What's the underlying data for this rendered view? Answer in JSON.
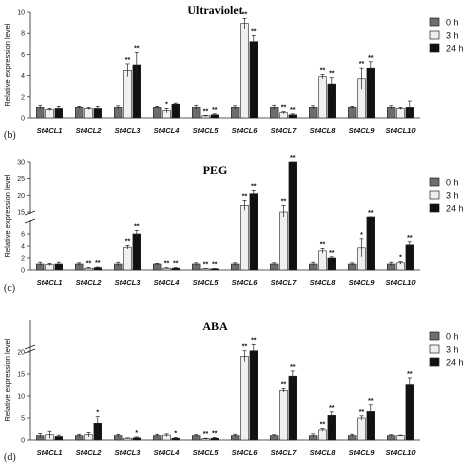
{
  "series_colors": [
    "#6d6d6d",
    "#f0f0f0",
    "#111111"
  ],
  "legend": [
    "0 h",
    "3 h",
    "24 h"
  ],
  "chart_data": [
    {
      "type": "bar",
      "title": "Ultraviolet",
      "panel_label": "(b)",
      "ylabel": "Relative expression level",
      "categories": [
        "St4CL1",
        "St4CL2",
        "St4CL3",
        "St4CL4",
        "St4CL5",
        "St4CL6",
        "St4CL7",
        "St4CL8",
        "St4CL9",
        "St4CL10"
      ],
      "ylim": [
        0,
        10
      ],
      "yticks": [
        "0",
        "2",
        "4",
        "6",
        "8",
        "10"
      ],
      "series": [
        {
          "name": "0 h",
          "values": [
            1.0,
            1.0,
            1.0,
            1.0,
            1.0,
            1.0,
            1.0,
            1.0,
            1.0,
            1.0
          ],
          "errors": [
            0.2,
            0.1,
            0.15,
            0.1,
            0.2,
            0.15,
            0.2,
            0.15,
            0.1,
            0.15
          ]
        },
        {
          "name": "3 h",
          "values": [
            0.8,
            0.9,
            4.5,
            0.7,
            0.2,
            8.9,
            0.5,
            3.9,
            3.7,
            0.9
          ],
          "errors": [
            0.1,
            0.1,
            0.6,
            0.2,
            0.05,
            0.5,
            0.1,
            0.2,
            1.0,
            0.1
          ]
        },
        {
          "name": "24 h",
          "values": [
            0.9,
            0.9,
            5.0,
            1.3,
            0.3,
            7.2,
            0.3,
            3.2,
            4.7,
            1.0
          ],
          "errors": [
            0.2,
            0.2,
            1.2,
            0.1,
            0.1,
            0.6,
            0.1,
            0.6,
            0.6,
            0.6
          ]
        }
      ],
      "sig": [
        [
          "",
          "",
          "",
          "",
          "",
          "",
          "",
          "",
          "",
          ""
        ],
        [
          "",
          "",
          "**",
          "*",
          "**",
          "**",
          "**",
          "**",
          "**",
          ""
        ],
        [
          "",
          "",
          "**",
          "",
          "**",
          "**",
          "**",
          "**",
          "**",
          ""
        ]
      ]
    },
    {
      "type": "bar",
      "title": "PEG",
      "panel_label": "(c)",
      "ylabel": "Relative expression level",
      "categories": [
        "St4CL1",
        "St4CL2",
        "St4CL3",
        "St4CL4",
        "St4CL5",
        "St4CL6",
        "St4CL7",
        "St4CL8",
        "St4CL9",
        "St4CL10"
      ],
      "axis_break": {
        "lower": [
          0,
          8
        ],
        "upper": [
          15,
          30
        ]
      },
      "yticks_lower": [
        "0",
        "2",
        "4",
        "6"
      ],
      "yticks_upper": [
        "15",
        "20",
        "25",
        "30"
      ],
      "series": [
        {
          "name": "0 h",
          "values": [
            1.0,
            1.0,
            1.0,
            1.0,
            1.0,
            1.0,
            1.0,
            1.0,
            1.0,
            1.0
          ],
          "errors": [
            0.3,
            0.2,
            0.3,
            0.1,
            0.2,
            0.2,
            0.2,
            0.3,
            0.2,
            0.3
          ]
        },
        {
          "name": "3 h",
          "values": [
            0.9,
            0.3,
            3.8,
            0.3,
            0.2,
            17.0,
            15.0,
            3.2,
            3.7,
            1.2
          ],
          "errors": [
            0.2,
            0.1,
            0.3,
            0.1,
            0.05,
            1.5,
            2.0,
            0.4,
            1.5,
            0.2
          ]
        },
        {
          "name": "24 h",
          "values": [
            1.0,
            0.4,
            6.0,
            0.3,
            0.2,
            20.5,
            33.0,
            2.0,
            13.0,
            4.2
          ],
          "errors": [
            0.3,
            0.1,
            0.6,
            0.1,
            0.05,
            1.0,
            2.0,
            0.2,
            1.5,
            0.5
          ]
        }
      ],
      "sig": [
        [
          "",
          "",
          "",
          "",
          "",
          "",
          "",
          "",
          "",
          ""
        ],
        [
          "",
          "**",
          "**",
          "**",
          "**",
          "**",
          "**",
          "**",
          "*",
          "*"
        ],
        [
          "",
          "**",
          "**",
          "**",
          "**",
          "**",
          "**",
          "**",
          "**",
          "**"
        ]
      ]
    },
    {
      "type": "bar",
      "title": "ABA",
      "panel_label": "(d)",
      "ylabel": "Relative expression level",
      "categories": [
        "St4CL1",
        "St4CL2",
        "St4CL3",
        "St4CL4",
        "St4CL5",
        "St4CL6",
        "St4CL7",
        "St4CL8",
        "St4CL9",
        "St4CL10"
      ],
      "axis_break": {
        "lower": [
          0,
          20
        ],
        "upper": [
          20,
          25
        ]
      },
      "yticks": [
        "0",
        "5",
        "10",
        "15",
        "20"
      ],
      "series": [
        {
          "name": "0 h",
          "values": [
            1.0,
            1.0,
            1.0,
            1.0,
            1.0,
            1.0,
            1.0,
            1.0,
            1.0,
            1.0
          ],
          "errors": [
            0.5,
            0.3,
            0.3,
            0.3,
            0.2,
            0.3,
            0.2,
            0.4,
            0.3,
            0.2
          ]
        },
        {
          "name": "3 h",
          "values": [
            1.2,
            1.2,
            0.4,
            1.1,
            0.3,
            19.0,
            11.3,
            2.3,
            5.0,
            1.0
          ],
          "errors": [
            0.8,
            0.5,
            0.1,
            0.3,
            0.1,
            1.2,
            0.4,
            0.3,
            0.5,
            0.1
          ]
        },
        {
          "name": "24 h",
          "values": [
            0.8,
            3.8,
            0.5,
            0.4,
            0.4,
            20.2,
            14.5,
            5.6,
            6.5,
            12.6
          ],
          "errors": [
            0.3,
            1.5,
            0.2,
            0.2,
            0.2,
            1.0,
            1.2,
            0.8,
            1.5,
            1.5
          ]
        }
      ],
      "sig": [
        [
          "",
          "",
          "",
          "",
          "",
          "",
          "",
          "",
          "",
          ""
        ],
        [
          "",
          "",
          "",
          "",
          "**",
          "**",
          "**",
          "**",
          "**",
          ""
        ],
        [
          "",
          "*",
          "*",
          "*",
          "**",
          "**",
          "**",
          "**",
          "**",
          "**"
        ]
      ]
    }
  ]
}
